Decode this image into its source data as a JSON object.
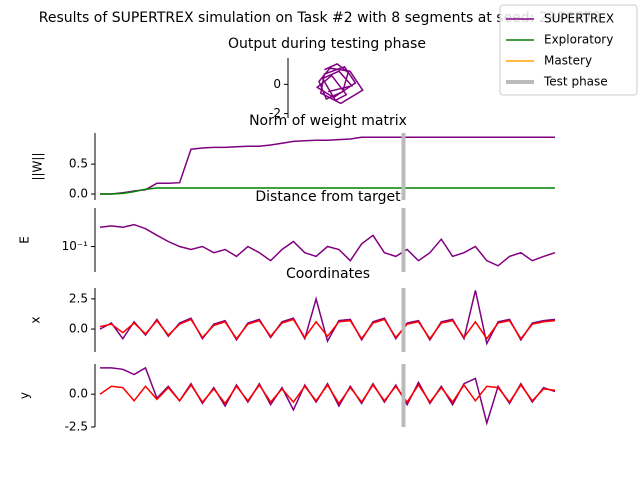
{
  "figure": {
    "title": "Results of SUPERTREX simulation on Task #2 with 8 segments at seed: 2986773",
    "legend": [
      {
        "name": "SUPERTREX",
        "color": "#800080"
      },
      {
        "name": "Exploratory",
        "color": "#008000"
      },
      {
        "name": "Mastery",
        "color": "#ffa500"
      },
      {
        "name": "Test phase",
        "color": "#bbbbbb"
      }
    ],
    "legend_position": "upper right"
  },
  "chart_data": [
    {
      "type": "line",
      "title": "Output during testing phase",
      "xlim": [
        -1.5,
        3
      ],
      "ylim": [
        -2.3,
        1.8
      ],
      "yticks": [
        -2,
        0
      ],
      "series": [
        {
          "color": "#800080",
          "x": [
            0.5,
            1.2,
            1.8,
            1.5,
            0.6,
            0.2,
            0.8,
            1.9,
            2.6,
            1.4,
            0.3,
            0.5,
            1.6,
            2.2,
            1.0,
            0.1,
            0.9,
            1.7,
            1.1,
            0.4,
            1.3,
            2.0,
            0.7
          ],
          "values": [
            1.0,
            1.4,
            0.8,
            -0.5,
            -1.0,
            0.2,
            1.1,
            0.9,
            -0.4,
            -1.3,
            -0.6,
            0.7,
            1.2,
            0.1,
            -0.9,
            -0.2,
            0.6,
            -0.7,
            -1.1,
            0.4,
            0.9,
            -0.1,
            -0.5
          ]
        }
      ]
    },
    {
      "type": "line",
      "title": "Norm of weight matrix",
      "ylabel": "||W||",
      "xlim": [
        0,
        100
      ],
      "ylim": [
        -0.1,
        1.02
      ],
      "yticks": [
        {
          "value": 0,
          "label": "0.0"
        },
        0.5
      ],
      "test_phase": 66.7,
      "x": [
        0,
        2.5,
        5,
        7.5,
        10,
        12.5,
        15,
        17.5,
        20,
        22.5,
        25,
        27.5,
        30,
        32.5,
        35,
        37.5,
        40,
        42.5,
        45,
        47.5,
        50,
        52.5,
        55,
        57.5,
        60,
        62.5,
        65,
        67.5,
        70,
        72.5,
        75,
        77.5,
        80,
        82.5,
        85,
        87.5,
        90,
        92.5,
        95,
        97.5,
        100
      ],
      "series": [
        {
          "color": "#800080",
          "values": [
            0,
            0,
            0.02,
            0.05,
            0.07,
            0.18,
            0.18,
            0.19,
            0.75,
            0.77,
            0.78,
            0.78,
            0.79,
            0.8,
            0.8,
            0.82,
            0.85,
            0.88,
            0.89,
            0.9,
            0.9,
            0.91,
            0.92,
            0.95,
            0.95,
            0.95,
            0.95,
            0.95,
            0.95,
            0.95,
            0.95,
            0.95,
            0.95,
            0.95,
            0.95,
            0.95,
            0.95,
            0.95,
            0.95,
            0.95,
            0.95
          ]
        },
        {
          "color": "#008000",
          "values": [
            0,
            0,
            0.01,
            0.04,
            0.08,
            0.1,
            0.1,
            0.1,
            0.1,
            0.1,
            0.1,
            0.1,
            0.1,
            0.1,
            0.1,
            0.1,
            0.1,
            0.1,
            0.1,
            0.1,
            0.1,
            0.1,
            0.1,
            0.1,
            0.1,
            0.1,
            0.1,
            0.1,
            0.1,
            0.1,
            0.1,
            0.1,
            0.1,
            0.1,
            0.1,
            0.1,
            0.1,
            0.1,
            0.1,
            0.1,
            0.1
          ]
        }
      ]
    },
    {
      "type": "line",
      "title": "Distance from target",
      "ylabel": "E",
      "log_y": true,
      "xlim": [
        0,
        100
      ],
      "ylim": [
        0.04,
        0.4
      ],
      "yticks": [
        {
          "value": 0.1,
          "label": "10⁻¹"
        }
      ],
      "test_phase": 66.7,
      "x": [
        0,
        2.5,
        5,
        7.5,
        10,
        12.5,
        15,
        17.5,
        20,
        22.5,
        25,
        27.5,
        30,
        32.5,
        35,
        37.5,
        40,
        42.5,
        45,
        47.5,
        50,
        52.5,
        55,
        57.5,
        60,
        62.5,
        65,
        67.5,
        70,
        72.5,
        75,
        77.5,
        80,
        82.5,
        85,
        87.5,
        90,
        92.5,
        95,
        97.5,
        100
      ],
      "series": [
        {
          "color": "#800080",
          "values": [
            0.2,
            0.21,
            0.2,
            0.22,
            0.19,
            0.15,
            0.12,
            0.1,
            0.09,
            0.1,
            0.08,
            0.09,
            0.07,
            0.1,
            0.08,
            0.06,
            0.09,
            0.12,
            0.08,
            0.07,
            0.1,
            0.09,
            0.06,
            0.11,
            0.15,
            0.08,
            0.07,
            0.09,
            0.06,
            0.08,
            0.13,
            0.07,
            0.08,
            0.1,
            0.06,
            0.05,
            0.07,
            0.08,
            0.06,
            0.07,
            0.08
          ]
        }
      ]
    },
    {
      "type": "line",
      "title": "Coordinates",
      "ylabel": "x",
      "xlim": [
        0,
        100
      ],
      "ylim": [
        -1.9,
        3.4
      ],
      "yticks": [
        {
          "value": 0,
          "label": "0.0"
        },
        2.5
      ],
      "test_phase": 66.7,
      "x": [
        0,
        2.5,
        5,
        7.5,
        10,
        12.5,
        15,
        17.5,
        20,
        22.5,
        25,
        27.5,
        30,
        32.5,
        35,
        37.5,
        40,
        42.5,
        45,
        47.5,
        50,
        52.5,
        55,
        57.5,
        60,
        62.5,
        65,
        67.5,
        70,
        72.5,
        75,
        77.5,
        80,
        82.5,
        85,
        87.5,
        90,
        92.5,
        95,
        97.5,
        100
      ],
      "series": [
        {
          "color": "#800080",
          "values": [
            0,
            0.5,
            -0.8,
            0.6,
            -0.5,
            0.8,
            -0.6,
            0.5,
            0.9,
            -0.8,
            0.4,
            0.7,
            -0.9,
            0.5,
            0.8,
            -0.7,
            0.6,
            0.9,
            -0.8,
            2.5,
            -1,
            0.7,
            0.8,
            -0.9,
            0.6,
            0.9,
            -0.8,
            0.5,
            0.7,
            -0.9,
            0.6,
            0.8,
            -0.8,
            3.2,
            -1.2,
            0.6,
            0.8,
            -0.9,
            0.5,
            0.7,
            0.8
          ]
        },
        {
          "color": "#ff0000",
          "values": [
            0.2,
            0.4,
            -0.3,
            0.5,
            -0.4,
            0.7,
            -0.5,
            0.4,
            0.8,
            -0.7,
            0.3,
            0.6,
            -0.8,
            0.4,
            0.7,
            -0.6,
            0.5,
            0.8,
            -0.7,
            0.6,
            -0.6,
            0.6,
            0.7,
            -0.8,
            0.5,
            0.8,
            -0.7,
            0.4,
            0.6,
            -0.8,
            0.5,
            0.7,
            -0.7,
            0.6,
            -0.8,
            0.5,
            0.7,
            -0.8,
            0.4,
            0.6,
            0.7
          ]
        }
      ]
    },
    {
      "type": "line",
      "ylabel": "y",
      "xlim": [
        0,
        100
      ],
      "ylim": [
        -2.5,
        2.3
      ],
      "yticks": [
        {
          "value": 0,
          "label": "0.0"
        },
        -2.5
      ],
      "test_phase": 66.7,
      "x": [
        0,
        2.5,
        5,
        7.5,
        10,
        12.5,
        15,
        17.5,
        20,
        22.5,
        25,
        27.5,
        30,
        32.5,
        35,
        37.5,
        40,
        42.5,
        45,
        47.5,
        50,
        52.5,
        55,
        57.5,
        60,
        62.5,
        65,
        67.5,
        70,
        72.5,
        75,
        77.5,
        80,
        82.5,
        85,
        87.5,
        90,
        92.5,
        95,
        97.5,
        100
      ],
      "series": [
        {
          "color": "#800080",
          "values": [
            2,
            2,
            1.9,
            1.5,
            2,
            -0.3,
            0.6,
            -0.5,
            0.8,
            -0.7,
            0.5,
            -0.9,
            0.7,
            -0.6,
            0.8,
            -0.8,
            0.5,
            -1.2,
            0.7,
            -0.6,
            0.8,
            -0.9,
            0.6,
            -0.7,
            0.8,
            -0.6,
            0.7,
            -0.8,
            0.9,
            -0.7,
            0.6,
            -0.8,
            0.8,
            1.2,
            -2.2,
            0.6,
            -0.7,
            0.8,
            -0.6,
            0.5,
            0.2
          ]
        },
        {
          "color": "#ff0000",
          "values": [
            0,
            0.6,
            0.5,
            -0.5,
            0.6,
            -0.4,
            0.5,
            -0.5,
            0.7,
            -0.6,
            0.4,
            -0.7,
            0.6,
            -0.5,
            0.7,
            -0.6,
            0.4,
            -0.6,
            0.6,
            -0.5,
            0.7,
            -0.7,
            0.5,
            -0.6,
            0.7,
            -0.5,
            0.6,
            -0.6,
            0.7,
            -0.6,
            0.5,
            -0.6,
            0.7,
            -0.5,
            0.6,
            0.5,
            -0.6,
            0.7,
            -0.5,
            0.4,
            0.3
          ]
        }
      ]
    }
  ]
}
